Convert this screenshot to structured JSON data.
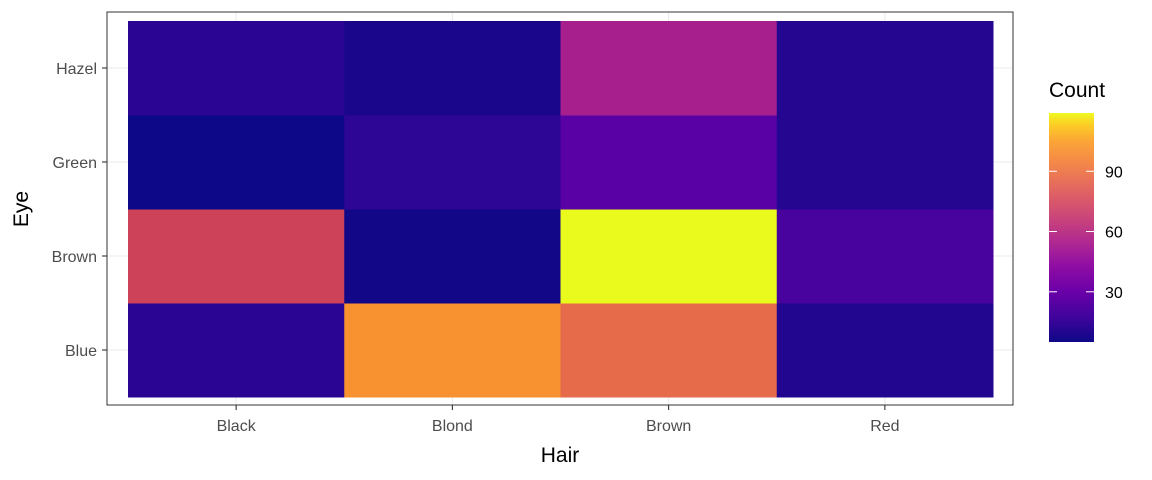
{
  "chart_data": {
    "type": "heatmap",
    "xlabel": "Hair",
    "ylabel": "Eye",
    "x_categories": [
      "Black",
      "Blond",
      "Brown",
      "Red"
    ],
    "y_categories": [
      "Blue",
      "Brown",
      "Green",
      "Hazel"
    ],
    "values": [
      [
        20,
        94,
        84,
        17
      ],
      [
        68,
        7,
        119,
        26
      ],
      [
        5,
        15,
        29,
        14
      ],
      [
        15,
        10,
        54,
        14
      ]
    ],
    "colors": [
      [
        "#2a0593",
        "#f89130",
        "#e56b4a",
        "#220690"
      ],
      [
        "#cd4159",
        "#120787",
        "#ebfa1d",
        "#48029e"
      ],
      [
        "#0d0887",
        "#2d0696",
        "#5901a5",
        "#240691"
      ],
      [
        "#2a0593",
        "#1a068b",
        "#a61f8d",
        "#250691"
      ]
    ],
    "legend": {
      "title": "Count",
      "ticks": [
        30,
        60,
        90
      ],
      "range": [
        5,
        119
      ],
      "colormap": "plasma",
      "position": "right"
    },
    "grid": true,
    "theme": "bw"
  }
}
